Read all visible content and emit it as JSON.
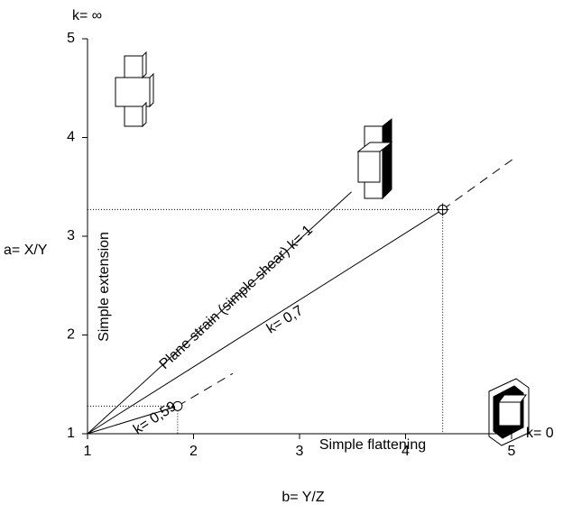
{
  "chart_data": {
    "type": "line",
    "xlim": [
      1,
      5
    ],
    "ylim": [
      1,
      5
    ],
    "xticks": [
      1,
      2,
      3,
      4,
      5
    ],
    "yticks": [
      1,
      2,
      3,
      4,
      5
    ],
    "color": "#000000",
    "series": [
      {
        "style": "solid",
        "x": [
          1,
          3.49
        ],
        "values": [
          1,
          3.45
        ]
      },
      {
        "style": "solid",
        "x": [
          1,
          4.35
        ],
        "values": [
          1,
          3.27
        ]
      },
      {
        "style": "dashed",
        "x": [
          4.35,
          5.05
        ],
        "values": [
          3.27,
          3.81
        ]
      },
      {
        "style": "solid",
        "x": [
          1,
          1.85
        ],
        "values": [
          1,
          1.28
        ]
      },
      {
        "style": "dashed",
        "x": [
          1.85,
          2.37
        ],
        "values": [
          1.28,
          1.61
        ]
      },
      {
        "style": "dotted",
        "x": [
          1,
          4.35,
          4.35
        ],
        "values": [
          3.27,
          3.27,
          1
        ]
      },
      {
        "style": "dotted",
        "x": [
          1,
          1.85,
          1.85
        ],
        "values": [
          1.28,
          1.28,
          1
        ]
      }
    ],
    "points": {
      "x": [
        4.35,
        1.85
      ],
      "values": [
        3.27,
        1.28
      ],
      "markers": [
        "crosshair",
        "circle"
      ]
    },
    "annotations": [
      "k= ∞",
      "k= 0",
      "a= X/Y",
      "b= Y/Z",
      "Simple extension",
      "Plane strain (simple shear) k= 1",
      "k= 0,7",
      "k= 0,59",
      "Simple flattening"
    ]
  }
}
